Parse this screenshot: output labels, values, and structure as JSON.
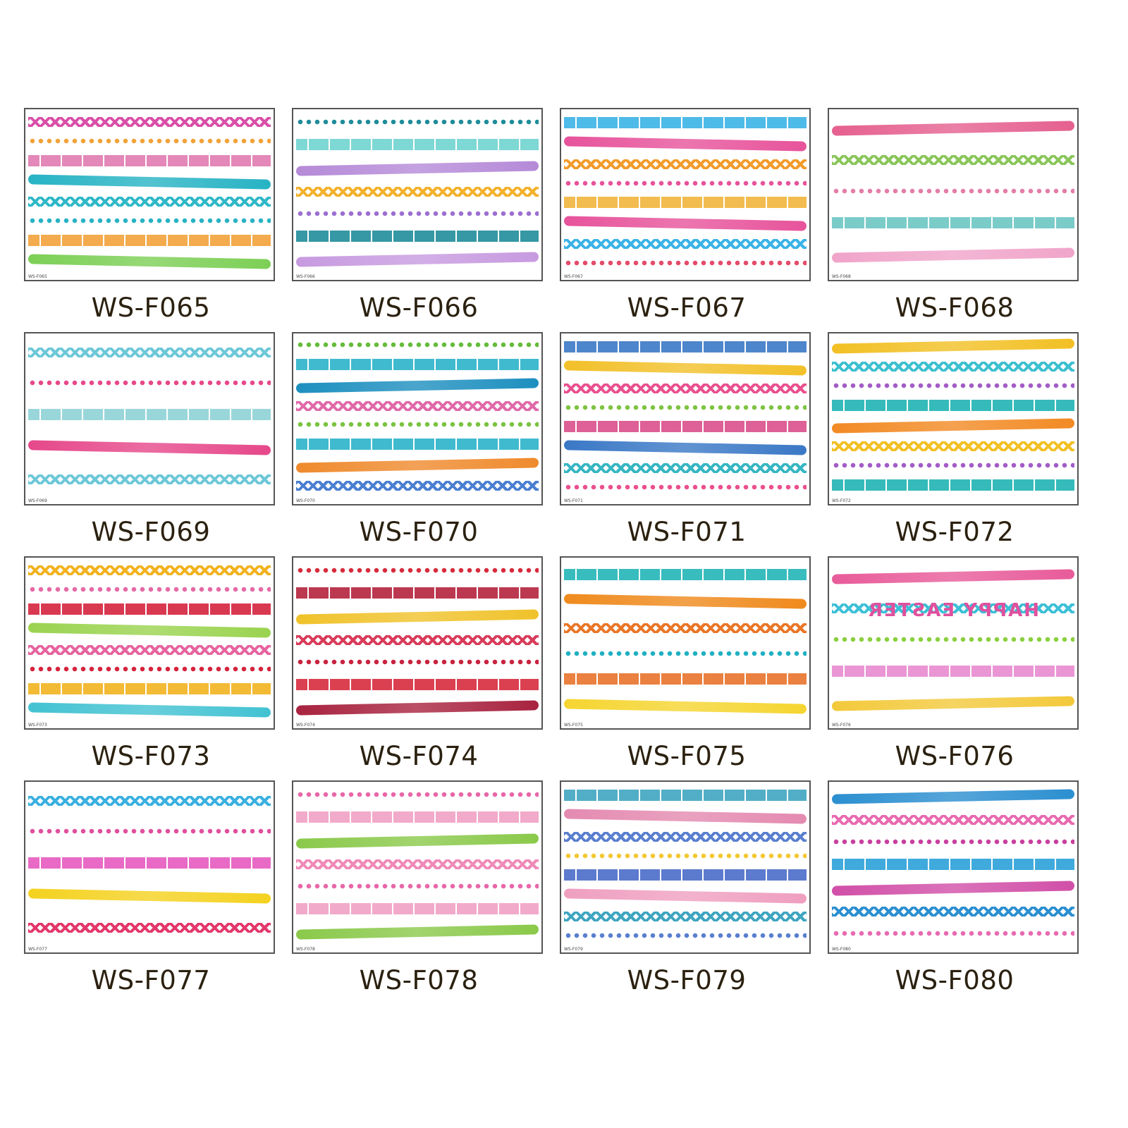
{
  "sheets": [
    {
      "code": "WS-F065",
      "small_code": "WS-F065",
      "colors": [
        "#d94fa8",
        "#f2a23a",
        "#e07bb0",
        "#27b3c4",
        "#2fb8c8",
        "#27b3c4",
        "#f2a23a",
        "#7ccf55"
      ]
    },
    {
      "code": "WS-F066",
      "small_code": "WS-F066",
      "colors": [
        "#1f8c9a",
        "#6fd3cf",
        "#b58ad8",
        "#f3b12c",
        "#9b6fd0",
        "#1f8c9a",
        "#c79ae0"
      ]
    },
    {
      "code": "WS-F067",
      "small_code": "WS-F067",
      "colors": [
        "#3bb3e6",
        "#e7539b",
        "#f29b2b",
        "#e7539b",
        "#f0b43c",
        "#e7539b",
        "#3bb3e6",
        "#e24b6a"
      ]
    },
    {
      "code": "WS-F068",
      "small_code": "WS-F068",
      "colors": [
        "#e5608f",
        "#8ac65a",
        "#e37ea8",
        "#6cc6c3",
        "#f0a4c9"
      ]
    },
    {
      "code": "WS-F069",
      "small_code": "WS-F069",
      "colors": [
        "#6dc8d8",
        "#e6488a",
        "#8ed1d6",
        "#e6488a",
        "#6dc8d8"
      ]
    },
    {
      "code": "WS-F070",
      "small_code": "WS-F070",
      "colors": [
        "#66bb3a",
        "#2bb3c9",
        "#1d8fbf",
        "#e06aa9",
        "#7bc341",
        "#2bb3c9",
        "#ef8a2d",
        "#4a7fd1"
      ]
    },
    {
      "code": "WS-F071",
      "small_code": "WS-F071",
      "colors": [
        "#3a78c6",
        "#f2c029",
        "#e9508f",
        "#7fc343",
        "#d94f8a",
        "#3a78c6",
        "#35b6c2",
        "#e9508f"
      ]
    },
    {
      "code": "WS-F072",
      "small_code": "WS-F072",
      "colors": [
        "#f2c024",
        "#3cc0d0",
        "#a35cc7",
        "#1fb2b3",
        "#f28a24",
        "#f2c024",
        "#a35cc7",
        "#1fb2b3"
      ]
    },
    {
      "code": "WS-F073",
      "small_code": "WS-F073",
      "colors": [
        "#f2b21f",
        "#e66aa6",
        "#d5233c",
        "#9ad34f",
        "#e6649f",
        "#d5233c",
        "#f2b21f",
        "#42c2d2"
      ]
    },
    {
      "code": "WS-F074",
      "small_code": "WS-F074",
      "colors": [
        "#d72b3c",
        "#b4223d",
        "#f0c22a",
        "#d93b5a",
        "#c8233f",
        "#d72b3c",
        "#a8233f"
      ]
    },
    {
      "code": "WS-F075",
      "small_code": "WS-F075",
      "colors": [
        "#22b5b7",
        "#ef8a1d",
        "#e97627",
        "#1fb0c2",
        "#e8732b",
        "#f5d530"
      ]
    },
    {
      "code": "WS-F076",
      "small_code": "WS-F076",
      "colors": [
        "#e85b9a",
        "#3dc0d7",
        "#8bcf3f",
        "#e88ad0",
        "#f3c93b"
      ],
      "text_art": "HAPPY EASTER"
    },
    {
      "code": "WS-F077",
      "small_code": "WS-F077",
      "colors": [
        "#3ab0e0",
        "#e0509e",
        "#e65abf",
        "#f4d21f",
        "#e3376a"
      ]
    },
    {
      "code": "WS-F078",
      "small_code": "WS-F078",
      "colors": [
        "#e867a8",
        "#f0a0c4",
        "#8ac94a",
        "#f08ab8",
        "#e867a8",
        "#f0a0c4",
        "#8ac94a"
      ]
    },
    {
      "code": "WS-F079",
      "small_code": "WS-F079",
      "colors": [
        "#3fa5c0",
        "#e48ab0",
        "#5a7fcf",
        "#f2c833",
        "#4a6cc8",
        "#ef9fc0",
        "#3fa5c0",
        "#5a7fcf"
      ]
    },
    {
      "code": "WS-F080",
      "small_code": "WS-F080",
      "colors": [
        "#2b8fd0",
        "#e86ab0",
        "#c93f9e",
        "#2ba0d8",
        "#d14fa8",
        "#2b8fd0",
        "#e86ab0"
      ]
    }
  ]
}
